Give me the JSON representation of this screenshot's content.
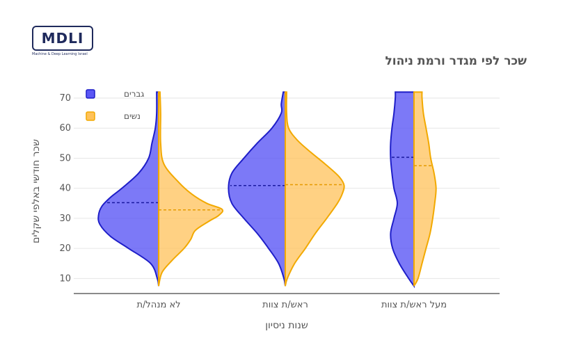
{
  "logo": {
    "text": "MDLI",
    "subtitle": "Machine & Deep Learning Israel"
  },
  "chart_data": {
    "type": "violin",
    "title": "שכר לפי מגדר ורמת ניהול",
    "xlabel": "שנות ניסיון",
    "ylabel": "שכר חודשי באלפי שקלים",
    "categories": [
      "לא מנהל/ת",
      "ראש/ת צוות",
      "מעל ראש/ת צוות"
    ],
    "yticks": [
      10,
      20,
      30,
      40,
      50,
      60,
      70
    ],
    "ylim": [
      5,
      73
    ],
    "legend_position": "top-left",
    "grid": true,
    "series": [
      {
        "name": "גברים",
        "side": "left",
        "color": "#5b57f5",
        "edge_color": "#1e1ec8",
        "means": [
          35.2,
          40.9,
          50.3
        ],
        "ranges": [
          [
            7.5,
            72
          ],
          [
            7.5,
            72
          ],
          [
            7.5,
            72
          ]
        ]
      },
      {
        "name": "נשים",
        "side": "right",
        "color": "#ffc25a",
        "edge_color": "#f2a900",
        "means": [
          32.8,
          41.2,
          47.5
        ],
        "ranges": [
          [
            7.5,
            72
          ],
          [
            7.5,
            72
          ],
          [
            7.5,
            72
          ]
        ]
      }
    ],
    "density": {
      "left": [
        [
          [
            7.5,
            0.0
          ],
          [
            10,
            0.02
          ],
          [
            15,
            0.12
          ],
          [
            20,
            0.45
          ],
          [
            24,
            0.72
          ],
          [
            28,
            0.88
          ],
          [
            31,
            0.9
          ],
          [
            34,
            0.85
          ],
          [
            37,
            0.72
          ],
          [
            40,
            0.55
          ],
          [
            45,
            0.3
          ],
          [
            50,
            0.15
          ],
          [
            55,
            0.1
          ],
          [
            60,
            0.05
          ],
          [
            65,
            0.03
          ],
          [
            72,
            0.03
          ]
        ],
        [
          [
            7.5,
            0.0
          ],
          [
            10,
            0.02
          ],
          [
            15,
            0.1
          ],
          [
            20,
            0.25
          ],
          [
            25,
            0.42
          ],
          [
            30,
            0.62
          ],
          [
            35,
            0.8
          ],
          [
            40,
            0.85
          ],
          [
            45,
            0.8
          ],
          [
            50,
            0.62
          ],
          [
            55,
            0.42
          ],
          [
            60,
            0.2
          ],
          [
            65,
            0.06
          ],
          [
            68,
            0.06
          ],
          [
            72,
            0.03
          ]
        ],
        [
          [
            7.5,
            0.0
          ],
          [
            10,
            0.08
          ],
          [
            15,
            0.22
          ],
          [
            20,
            0.32
          ],
          [
            25,
            0.35
          ],
          [
            30,
            0.3
          ],
          [
            35,
            0.25
          ],
          [
            40,
            0.3
          ],
          [
            45,
            0.33
          ],
          [
            50,
            0.35
          ],
          [
            55,
            0.35
          ],
          [
            60,
            0.33
          ],
          [
            65,
            0.3
          ],
          [
            70,
            0.28
          ],
          [
            72,
            0.28
          ]
        ]
      ],
      "right": [
        [
          [
            7.5,
            0.0
          ],
          [
            12,
            0.05
          ],
          [
            16,
            0.2
          ],
          [
            20,
            0.38
          ],
          [
            23,
            0.48
          ],
          [
            26,
            0.55
          ],
          [
            29,
            0.75
          ],
          [
            31,
            0.9
          ],
          [
            33,
            0.95
          ],
          [
            35,
            0.72
          ],
          [
            38,
            0.5
          ],
          [
            42,
            0.3
          ],
          [
            48,
            0.08
          ],
          [
            55,
            0.03
          ],
          [
            65,
            0.03
          ],
          [
            72,
            0.02
          ]
        ],
        [
          [
            7.5,
            0.0
          ],
          [
            10,
            0.03
          ],
          [
            15,
            0.14
          ],
          [
            20,
            0.3
          ],
          [
            25,
            0.45
          ],
          [
            30,
            0.62
          ],
          [
            35,
            0.78
          ],
          [
            38,
            0.85
          ],
          [
            41,
            0.88
          ],
          [
            44,
            0.8
          ],
          [
            48,
            0.6
          ],
          [
            52,
            0.38
          ],
          [
            56,
            0.18
          ],
          [
            60,
            0.05
          ],
          [
            65,
            0.02
          ],
          [
            72,
            0.02
          ]
        ],
        [
          [
            7.5,
            0.0
          ],
          [
            10,
            0.06
          ],
          [
            15,
            0.12
          ],
          [
            20,
            0.18
          ],
          [
            25,
            0.24
          ],
          [
            30,
            0.28
          ],
          [
            35,
            0.31
          ],
          [
            40,
            0.33
          ],
          [
            45,
            0.3
          ],
          [
            50,
            0.25
          ],
          [
            55,
            0.22
          ],
          [
            60,
            0.18
          ],
          [
            65,
            0.14
          ],
          [
            70,
            0.12
          ],
          [
            72,
            0.12
          ]
        ]
      ]
    }
  }
}
